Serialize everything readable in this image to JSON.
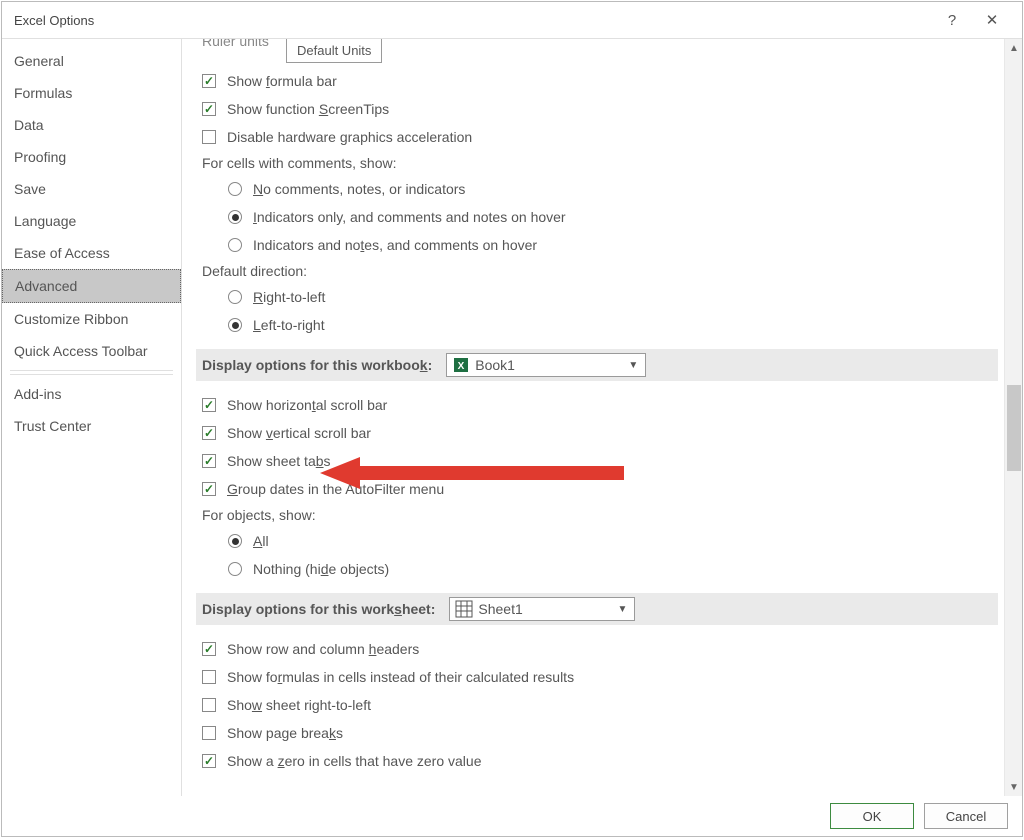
{
  "title": "Excel Options",
  "sidebar": {
    "items": [
      "General",
      "Formulas",
      "Data",
      "Proofing",
      "Save",
      "Language",
      "Ease of Access",
      "Advanced",
      "Customize Ribbon",
      "Quick Access Toolbar",
      "Add-ins",
      "Trust Center"
    ],
    "selected": "Advanced"
  },
  "ruler_label": "Ruler units",
  "ruler_value": "Default Units",
  "display_checks": {
    "formula_bar": {
      "label_pre": "Show ",
      "u": "f",
      "label_post": "ormula bar",
      "checked": true
    },
    "screentips": {
      "label_pre": "Show function ",
      "u": "S",
      "label_post": "creenTips",
      "checked": true
    },
    "hw_accel": {
      "label_pre": "Disable hardware ",
      "u": "g",
      "label_post": "raphics acceleration",
      "checked": false
    }
  },
  "comments": {
    "label": "For cells with comments, show:",
    "opts": [
      {
        "u": "N",
        "rest": "o comments, notes, or indicators",
        "sel": false
      },
      {
        "u": "I",
        "rest": "ndicators only, and comments and notes on hover",
        "sel": true
      },
      {
        "pre": "Indicators and no",
        "u": "t",
        "rest": "es, and comments on hover",
        "sel": false
      }
    ]
  },
  "direction": {
    "label": "Default direction:",
    "opts": [
      {
        "u": "R",
        "rest": "ight-to-left",
        "sel": false
      },
      {
        "u": "L",
        "rest": "eft-to-right",
        "sel": true
      }
    ]
  },
  "workbook_section": {
    "title_pre": "Display options for this workboo",
    "u": "k",
    "title_post": ":",
    "value": "Book1"
  },
  "workbook_checks": [
    {
      "pre": "Show horizon",
      "u": "t",
      "post": "al scroll bar",
      "checked": true
    },
    {
      "pre": "Show ",
      "u": "v",
      "post": "ertical scroll bar",
      "checked": true
    },
    {
      "pre": "Show sheet ta",
      "u": "b",
      "post": "s",
      "checked": true
    },
    {
      "pre": "",
      "u": "G",
      "post": "roup dates in the AutoFilter menu",
      "checked": true
    }
  ],
  "objects": {
    "label": "For objects, show:",
    "opts": [
      {
        "u": "A",
        "rest": "ll",
        "sel": true
      },
      {
        "pre": "Nothing (hi",
        "u": "d",
        "post": "e objects)",
        "sel": false
      }
    ]
  },
  "worksheet_section": {
    "title_pre": "Display options for this work",
    "u": "s",
    "title_post": "heet:",
    "value": "Sheet1"
  },
  "worksheet_checks": [
    {
      "pre": "Show row and column ",
      "u": "h",
      "post": "eaders",
      "checked": true
    },
    {
      "pre": "Show fo",
      "u": "r",
      "post": "mulas in cells instead of their calculated results",
      "checked": false
    },
    {
      "pre": "Sho",
      "u": "w",
      "post": " sheet right-to-left",
      "checked": false
    },
    {
      "pre": "Show page brea",
      "u": "k",
      "post": "s",
      "checked": false
    },
    {
      "pre": "Show a ",
      "u": "z",
      "post": "ero in cells that have zero value",
      "checked": true
    }
  ],
  "buttons": {
    "ok": "OK",
    "cancel": "Cancel"
  },
  "arrow_color": "#e03a2f"
}
